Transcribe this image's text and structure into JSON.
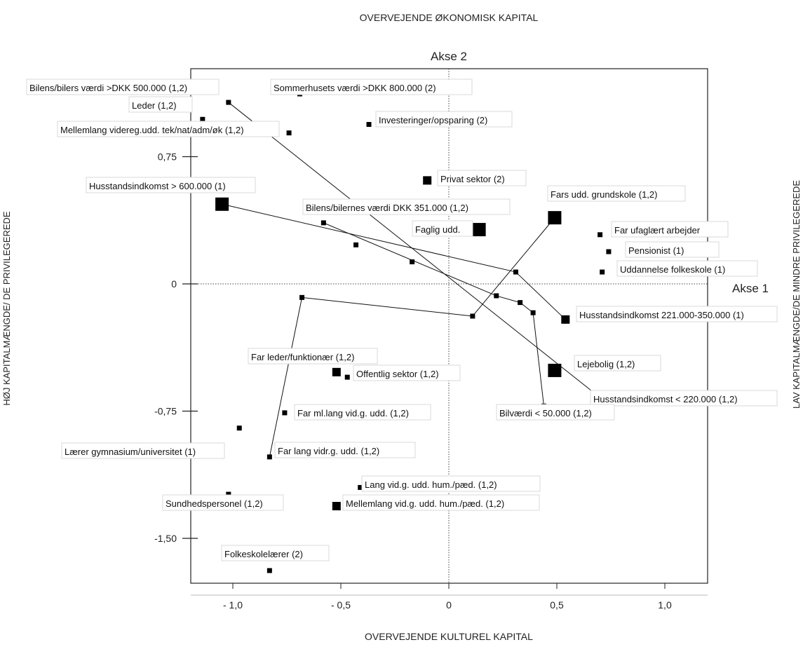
{
  "captions": {
    "top": "OVERVEJENDE ØKONOMISK KAPITAL",
    "bottom": "OVERVEJENDE KULTUREL KAPITAL",
    "left": "HØJ KAPITALMÆNGDE/ DE PRIVILEGEREDE",
    "right": "LAV KAPITALMÆNGDE/DE MINDRE PRIVILEGEREDE"
  },
  "chart_data": {
    "type": "scatter",
    "title": "Akse 2",
    "xlabel": "Akse 1",
    "ylabel": "",
    "xlim": [
      -1.2,
      1.2
    ],
    "ylim": [
      -1.75,
      1.1
    ],
    "xticks": [
      -1.0,
      -0.5,
      0,
      0.5,
      1.0
    ],
    "xtick_labels": [
      "- 1,0",
      "- 0,5",
      "0",
      "0,5",
      "1,0"
    ],
    "yticks": [
      0.75,
      0,
      -0.75,
      -1.5
    ],
    "ytick_labels": [
      "0,75",
      "0",
      "-0,75",
      "-1,50"
    ],
    "reference_lines": {
      "x": 0,
      "y": 0
    },
    "points": [
      {
        "label": "Bilens/bilers værdi >DKK 500.000 (1,2)",
        "x": -1.02,
        "y": 1.07,
        "size": "small"
      },
      {
        "label": "Sommerhusets værdi >DKK 800.000 (2)",
        "x": -0.69,
        "y": 1.12,
        "size": "small"
      },
      {
        "label": "Leder (1,2)",
        "x": -1.14,
        "y": 0.97,
        "size": "small"
      },
      {
        "label": "Mellemlang videreg.udd. tek/nat/adm/øk (1,2)",
        "x": -0.74,
        "y": 0.89,
        "size": "small"
      },
      {
        "label": "Investeringer/opsparing (2)",
        "x": -0.37,
        "y": 0.94,
        "size": "small"
      },
      {
        "label": "Privat sektor (2)",
        "x": -0.1,
        "y": 0.61,
        "size": "medium"
      },
      {
        "label": "Husstandsindkomst > 600.000 (1)",
        "x": -1.05,
        "y": 0.47,
        "size": "large"
      },
      {
        "label": "Fars udd. grundskole (1,2)",
        "x": 0.49,
        "y": 0.39,
        "size": "large"
      },
      {
        "label": "Bilens/bilernes værdi DKK 351.000 (1,2)",
        "x": -0.58,
        "y": 0.36,
        "size": "small"
      },
      {
        "label": "Faglig udd.",
        "x": 0.14,
        "y": 0.32,
        "size": "large"
      },
      {
        "label": "Far ufaglært arbejder",
        "x": 0.7,
        "y": 0.29,
        "size": "small"
      },
      {
        "label": "Pensionist (1)",
        "x": 0.74,
        "y": 0.19,
        "size": "small"
      },
      {
        "label": "Uddannelse folkeskole (1)",
        "x": 0.71,
        "y": 0.07,
        "size": "small"
      },
      {
        "label": "Husstandsindkomst 221.000-350.000 (1)",
        "x": 0.54,
        "y": -0.21,
        "size": "medium"
      },
      {
        "label": "Lejebolig (1,2)",
        "x": 0.49,
        "y": -0.51,
        "size": "large"
      },
      {
        "label": "Husstandsindkomst < 220.000 (1,2)",
        "x": 0.7,
        "y": -0.67,
        "size": "small"
      },
      {
        "label": "Bilværdi < 50.000 (1,2)",
        "x": 0.44,
        "y": -0.72,
        "size": "small"
      },
      {
        "label": "Far leder/funktionær (1,2)",
        "x": -0.52,
        "y": -0.52,
        "size": "medium"
      },
      {
        "label": "Offentlig sektor (1,2)",
        "x": -0.47,
        "y": -0.55,
        "size": "small"
      },
      {
        "label": "Far ml.lang vid.g. udd. (1,2)",
        "x": -0.76,
        "y": -0.76,
        "size": "small"
      },
      {
        "label": "Lærer gymnasium/universitet (1)",
        "x": -0.97,
        "y": -0.85,
        "size": "small"
      },
      {
        "label": "Far lang vidr.g. udd. (1,2)",
        "x": -0.83,
        "y": -1.02,
        "size": "small"
      },
      {
        "label": "Lang vid.g. udd. hum./pæd. (1,2)",
        "x": -0.41,
        "y": -1.2,
        "size": "small"
      },
      {
        "label": "Sundhedspersonel (1,2)",
        "x": -1.02,
        "y": -1.24,
        "size": "small"
      },
      {
        "label": "Mellemlang vid.g. udd. hum./pæd. (1,2)",
        "x": -0.52,
        "y": -1.31,
        "size": "medium"
      },
      {
        "label": "Folkeskolelærer (2)",
        "x": -0.83,
        "y": -1.69,
        "size": "small"
      }
    ]
  }
}
